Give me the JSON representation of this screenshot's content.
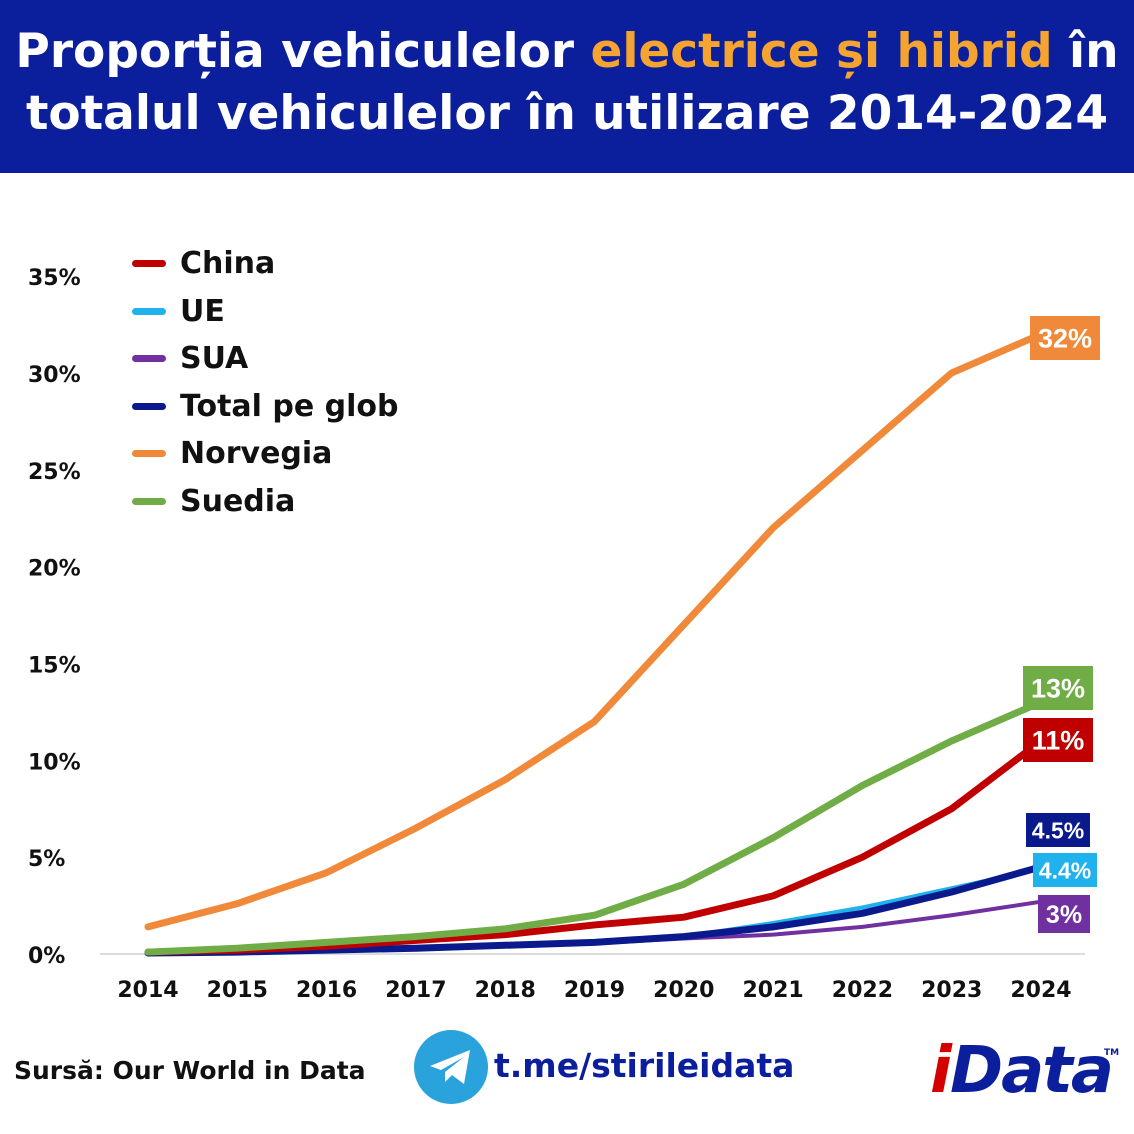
{
  "header": {
    "title_part1": "Proporția vehiculelor ",
    "title_highlight": "electrice și hibrid",
    "title_part2": " în",
    "title_line2": "totalul vehiculelor în utilizare 2014-2024",
    "background": "#0b1f9c",
    "highlight_color": "#f5a431"
  },
  "chart_data": {
    "type": "line",
    "title": "Proporția vehiculelor electrice și hibrid în totalul vehiculelor în utilizare 2014-2024",
    "x": [
      2014,
      2015,
      2016,
      2017,
      2018,
      2019,
      2020,
      2021,
      2022,
      2023,
      2024
    ],
    "y_ticks": [
      "0%",
      "5%",
      "10%",
      "15%",
      "20%",
      "25%",
      "30%",
      "35%"
    ],
    "ylim": [
      0,
      35
    ],
    "legend_position": "top-left",
    "series": [
      {
        "name": "China",
        "color": "#c00000",
        "width": 7,
        "values": [
          0.1,
          0.2,
          0.4,
          0.7,
          1.0,
          1.5,
          1.9,
          3.0,
          5.0,
          7.5,
          11.0
        ],
        "end_label": "11%",
        "end_label_bg": "#c00000"
      },
      {
        "name": "UE",
        "color": "#1fb2ec",
        "width": 4,
        "values": [
          0.05,
          0.1,
          0.2,
          0.3,
          0.45,
          0.6,
          0.9,
          1.6,
          2.4,
          3.4,
          4.4
        ],
        "end_label": "4.4%",
        "end_label_bg": "#1fb2ec"
      },
      {
        "name": "SUA",
        "color": "#7030a0",
        "width": 4,
        "values": [
          0.05,
          0.1,
          0.2,
          0.3,
          0.45,
          0.55,
          0.8,
          1.0,
          1.4,
          2.0,
          2.7
        ],
        "end_label": "3%",
        "end_label_bg": "#7030a0"
      },
      {
        "name": "Total pe glob",
        "color": "#0a1a8c",
        "width": 7,
        "values": [
          0.05,
          0.1,
          0.2,
          0.3,
          0.45,
          0.6,
          0.9,
          1.4,
          2.1,
          3.2,
          4.5
        ],
        "end_label": "4.5%",
        "end_label_bg": "#0a1a8c"
      },
      {
        "name": "Norvegia",
        "color": "#f08a3a",
        "width": 7,
        "values": [
          1.4,
          2.6,
          4.2,
          6.5,
          9.0,
          12.0,
          17.0,
          22.0,
          26.0,
          30.0,
          32.0
        ],
        "end_label": "32%",
        "end_label_bg": "#f08a3a"
      },
      {
        "name": "Suedia",
        "color": "#70ad47",
        "width": 7,
        "values": [
          0.1,
          0.3,
          0.6,
          0.9,
          1.3,
          2.0,
          3.6,
          6.0,
          8.7,
          11.0,
          13.0
        ],
        "end_label": "13%",
        "end_label_bg": "#70ad47"
      }
    ]
  },
  "footer": {
    "source": "Sursă: Our World in Data",
    "telegram_link": "t.me/stirileidata",
    "telegram_icon": "telegram-icon",
    "logo_i": "i",
    "logo_rest": "Data",
    "logo_tm": "TM"
  }
}
